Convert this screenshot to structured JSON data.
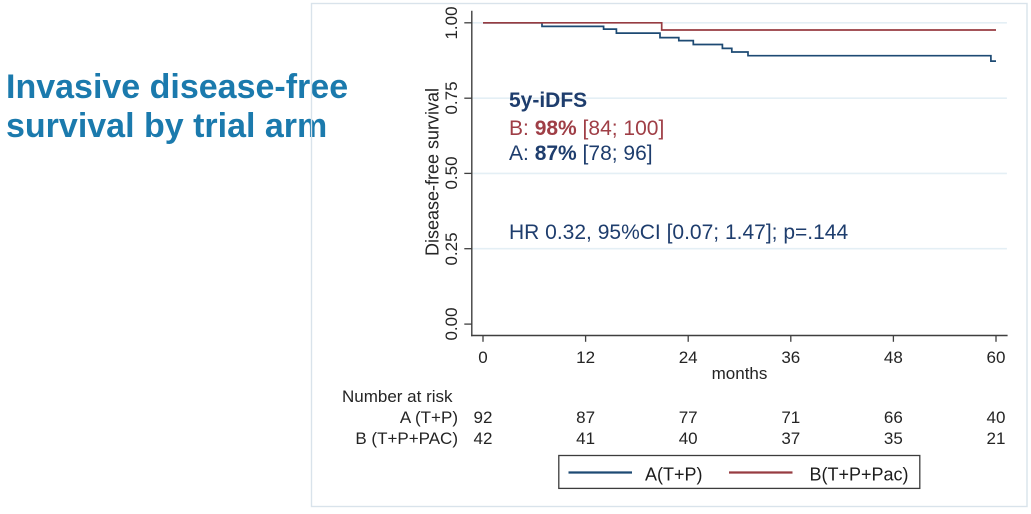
{
  "slide": {
    "title": "Invasive disease-free\nsurvival by trial arm",
    "title_color": "#1b7aad"
  },
  "chart_data": {
    "type": "line",
    "subtype": "kaplan-meier-step",
    "xlabel": "months",
    "ylabel": "Disease-free survival",
    "xlim": [
      0,
      60
    ],
    "ylim": [
      0.0,
      1.0
    ],
    "x_ticks": [
      "0",
      "12",
      "24",
      "36",
      "48",
      "60"
    ],
    "y_ticks": [
      "0.00",
      "0.25",
      "0.50",
      "0.75",
      "1.00"
    ],
    "grid": "horizontal gridlines at 0.25, 0.50, 0.75, 1.00",
    "legend_position": "bottom center, framed box",
    "series": [
      {
        "name": "A(T+P)",
        "color": "#1d4a73",
        "end_x": 60,
        "points": [
          [
            0,
            1.0
          ],
          [
            6.9,
            0.988
          ],
          [
            14.1,
            0.979
          ],
          [
            15.6,
            0.966
          ],
          [
            20.7,
            0.951
          ],
          [
            22.9,
            0.941
          ],
          [
            24.6,
            0.928
          ],
          [
            28.0,
            0.915
          ],
          [
            29.1,
            0.903
          ],
          [
            31.0,
            0.891
          ],
          [
            59.4,
            0.873
          ]
        ]
      },
      {
        "name": "B(T+P+Pac)",
        "color": "#973c42",
        "end_x": 60,
        "points": [
          [
            0,
            1.0
          ],
          [
            20.9,
            0.976
          ]
        ]
      }
    ],
    "annotations": {
      "header": "5y-iDFS",
      "b_prefix": "B: ",
      "b_value": "98%",
      "b_ci": " [84; 100]",
      "a_prefix": "A: ",
      "a_value": "87%",
      "a_ci": " [78; 96]",
      "hr_text": "HR 0.32, 95%CI [0.07; 1.47]; p=.144",
      "navy": "#1e3d6d",
      "maroon": "#9f3e46"
    },
    "at_risk": {
      "header": "Number at risk",
      "rows": [
        {
          "label": "A (T+P)",
          "counts": [
            "92",
            "87",
            "77",
            "71",
            "66",
            "40"
          ]
        },
        {
          "label": "B (T+P+PAC)",
          "counts": [
            "42",
            "41",
            "40",
            "37",
            "35",
            "21"
          ]
        }
      ]
    },
    "legend": {
      "entries": [
        {
          "label": "A(T+P)",
          "color": "#1d4a73"
        },
        {
          "label": "B(T+P+Pac)",
          "color": "#973c42"
        }
      ]
    }
  }
}
